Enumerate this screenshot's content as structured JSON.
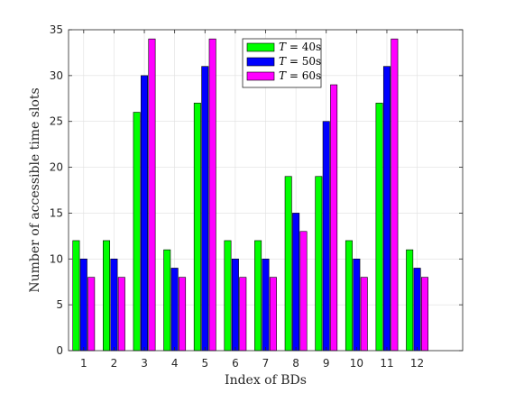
{
  "chart_data": {
    "type": "bar",
    "xlabel": "Index of BDs",
    "ylabel": "Number of accessible time slots",
    "categories": [
      "1",
      "2",
      "3",
      "4",
      "5",
      "6",
      "7",
      "8",
      "9",
      "10",
      "11",
      "12"
    ],
    "xlim": [
      0.5,
      13.5
    ],
    "ylim": [
      0,
      35
    ],
    "yticks": [
      0,
      5,
      10,
      15,
      20,
      25,
      30,
      35
    ],
    "grid": true,
    "legend_position": "top-center",
    "series": [
      {
        "name": "T = 40s",
        "italic_var": "T",
        "unit_suffix": " = 40s",
        "color": "#00ff00",
        "values": [
          12,
          12,
          26,
          11,
          27,
          12,
          12,
          19,
          19,
          12,
          27,
          11
        ]
      },
      {
        "name": "T = 50s",
        "italic_var": "T",
        "unit_suffix": " = 50s",
        "color": "#0000ff",
        "values": [
          10,
          10,
          30,
          9,
          31,
          10,
          10,
          15,
          25,
          10,
          31,
          9
        ]
      },
      {
        "name": "T = 60s",
        "italic_var": "T",
        "unit_suffix": " = 60s",
        "color": "#ff00ff",
        "values": [
          8,
          8,
          34,
          8,
          34,
          8,
          8,
          13,
          29,
          8,
          34,
          8
        ]
      }
    ]
  }
}
